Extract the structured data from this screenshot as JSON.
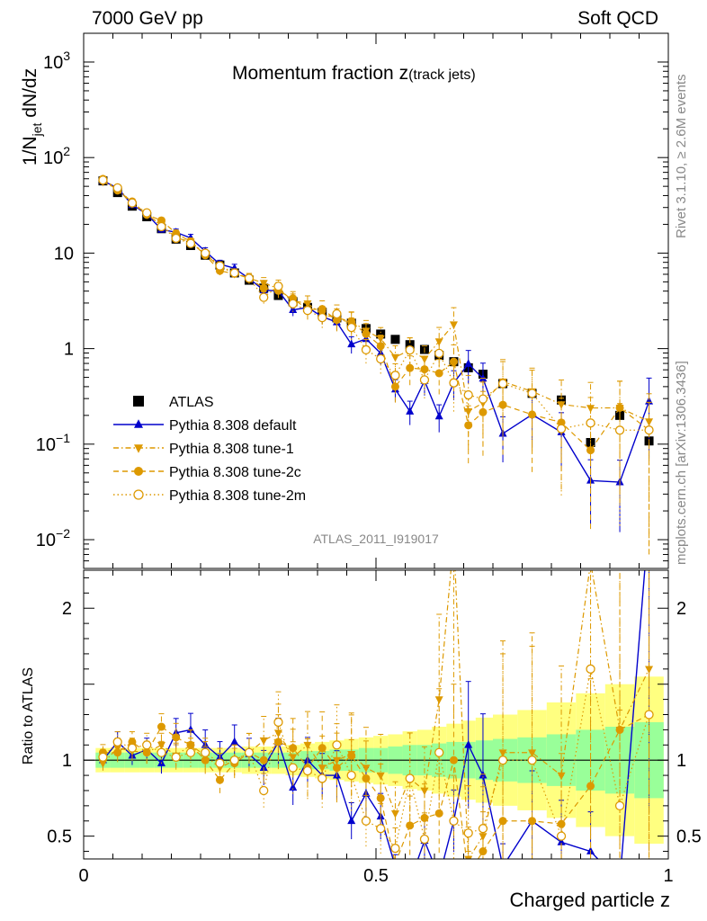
{
  "header": {
    "left": "7000 GeV pp",
    "right": "Soft QCD"
  },
  "title": {
    "main": "Momentum fraction ",
    "var": "z",
    "sub": "(track jets)"
  },
  "ylabel": {
    "pre": "1/N",
    "sub": "jet",
    "post": " dN/dz"
  },
  "ratio_ylabel": "Ratio to ATLAS",
  "xlabel": "Charged particle z",
  "watermark": "ATLAS_2011_I919017",
  "side_top": "Rivet 3.1.10, ≥ 2.6M events",
  "side_bottom": "mcplots.cern.ch [arXiv:1306.3436]",
  "colors": {
    "atlas": "#000000",
    "default": "#0000cc",
    "tunes": "#dd9900",
    "band_inner": "#99ff99",
    "band_outer": "#ffff80"
  },
  "chart_data": {
    "type": "scatter",
    "x": [
      0.033,
      0.058,
      0.083,
      0.108,
      0.133,
      0.158,
      0.183,
      0.208,
      0.233,
      0.258,
      0.283,
      0.308,
      0.333,
      0.358,
      0.383,
      0.408,
      0.433,
      0.458,
      0.483,
      0.508,
      0.533,
      0.558,
      0.583,
      0.608,
      0.633,
      0.658,
      0.683,
      0.717,
      0.767,
      0.817,
      0.867,
      0.917,
      0.967
    ],
    "main": {
      "xlim": [
        0,
        1
      ],
      "ylim": [
        0.005,
        2000
      ],
      "yscale": "log",
      "yticks": [
        {
          "v": 0.01,
          "base": "10",
          "exp": "−2"
        },
        {
          "v": 0.1,
          "base": "10",
          "exp": "−1"
        },
        {
          "v": 1,
          "base": "1",
          "exp": ""
        },
        {
          "v": 10,
          "base": "10",
          "exp": ""
        },
        {
          "v": 100,
          "base": "10",
          "exp": "2"
        },
        {
          "v": 1000,
          "base": "10",
          "exp": "3"
        }
      ]
    },
    "ratio": {
      "ylim": [
        0.35,
        2.25
      ],
      "yticks": [
        {
          "v": 0.5,
          "label": "0.5"
        },
        {
          "v": 1,
          "label": "1"
        },
        {
          "v": 2,
          "label": "2"
        }
      ],
      "band_inner": [
        0.05,
        0.05,
        0.05,
        0.05,
        0.05,
        0.05,
        0.05,
        0.05,
        0.05,
        0.05,
        0.05,
        0.05,
        0.05,
        0.05,
        0.06,
        0.06,
        0.07,
        0.07,
        0.08,
        0.08,
        0.09,
        0.1,
        0.1,
        0.11,
        0.12,
        0.12,
        0.13,
        0.14,
        0.15,
        0.17,
        0.2,
        0.22,
        0.25
      ],
      "band_outer": [
        0.08,
        0.08,
        0.08,
        0.08,
        0.08,
        0.08,
        0.08,
        0.08,
        0.08,
        0.08,
        0.09,
        0.09,
        0.09,
        0.1,
        0.11,
        0.12,
        0.13,
        0.14,
        0.15,
        0.16,
        0.17,
        0.19,
        0.2,
        0.22,
        0.24,
        0.26,
        0.28,
        0.3,
        0.33,
        0.38,
        0.44,
        0.5,
        0.55
      ]
    },
    "xticks": [
      {
        "v": 0,
        "label": "0"
      },
      {
        "v": 0.5,
        "label": "0.5"
      },
      {
        "v": 1,
        "label": "1"
      }
    ],
    "series": [
      {
        "name": "ATLAS",
        "marker": "square",
        "line": "none",
        "y": [
          57,
          43,
          31,
          24,
          18,
          14,
          12,
          9.5,
          7.5,
          6.2,
          5.2,
          4.3,
          3.6,
          3.1,
          2.7,
          2.4,
          2.1,
          1.85,
          1.62,
          1.42,
          1.25,
          1.1,
          0.98,
          0.85,
          0.73,
          0.63,
          0.54,
          0.43,
          0.34,
          0.29,
          0.104,
          0.2,
          0.108
        ]
      },
      {
        "name": "Pythia 8.308 default",
        "marker": "triangle",
        "line": "solid",
        "ratio": [
          1.0,
          1.12,
          1.03,
          1.07,
          0.98,
          1.18,
          1.2,
          1.1,
          1.02,
          1.12,
          1.04,
          0.95,
          1.12,
          0.82,
          1.0,
          0.9,
          0.9,
          0.6,
          0.78,
          0.63,
          0.3,
          0.2,
          0.47,
          0.23,
          0.6,
          1.1,
          0.9,
          0.3,
          0.6,
          0.46,
          0.4,
          0.2,
          2.6
        ],
        "err": [
          0.05,
          0.06,
          0.06,
          0.07,
          0.07,
          0.08,
          0.09,
          0.09,
          0.1,
          0.1,
          0.1,
          0.12,
          0.14,
          0.14,
          0.15,
          0.16,
          0.18,
          0.2,
          0.22,
          0.24,
          0.26,
          0.28,
          0.3,
          0.32,
          0.34,
          0.38,
          0.45,
          0.5,
          0.55,
          0.6,
          0.65,
          0.7,
          0.75
        ]
      },
      {
        "name": "Pythia 8.308 tune-1",
        "marker": "triangle-down",
        "line": "dashdot",
        "ratio": [
          0.98,
          1.08,
          1.06,
          1.05,
          1.1,
          1.03,
          1.1,
          1.03,
          0.95,
          1.0,
          1.05,
          1.13,
          1.18,
          1.02,
          1.1,
          0.95,
          1.0,
          1.04,
          0.95,
          0.9,
          0.65,
          0.88,
          0.8,
          1.4,
          2.45,
          0.35,
          0.5,
          1.05,
          1.05,
          0.9,
          2.3,
          1.2,
          1.6
        ],
        "err": [
          0.05,
          0.06,
          0.06,
          0.07,
          0.07,
          0.08,
          0.09,
          0.09,
          0.1,
          0.1,
          0.12,
          0.14,
          0.16,
          0.18,
          0.2,
          0.22,
          0.24,
          0.26,
          0.28,
          0.3,
          0.32,
          0.34,
          0.36,
          0.4,
          0.5,
          0.6,
          0.65,
          0.7,
          0.75,
          0.8,
          0.85,
          0.9,
          0.95
        ]
      },
      {
        "name": "Pythia 8.308 tune-2c",
        "marker": "circle",
        "line": "dashed",
        "ratio": [
          1.05,
          1.05,
          1.12,
          1.05,
          1.22,
          1.15,
          1.1,
          1.0,
          0.87,
          0.98,
          1.05,
          1.0,
          1.12,
          1.08,
          0.95,
          1.08,
          0.95,
          1.03,
          0.88,
          0.75,
          0.32,
          0.57,
          0.62,
          0.65,
          1.0,
          0.25,
          0.4,
          0.6,
          0.6,
          0.58,
          0.83,
          1.2,
          1.3
        ],
        "err": [
          0.05,
          0.06,
          0.06,
          0.07,
          0.07,
          0.08,
          0.09,
          0.09,
          0.1,
          0.1,
          0.12,
          0.14,
          0.16,
          0.18,
          0.2,
          0.22,
          0.24,
          0.26,
          0.28,
          0.3,
          0.32,
          0.34,
          0.36,
          0.4,
          0.5,
          0.6,
          0.65,
          0.7,
          0.75,
          0.8,
          0.85,
          0.9,
          0.95
        ]
      },
      {
        "name": "Pythia 8.308 tune-2m",
        "marker": "circle-open",
        "line": "dotted",
        "ratio": [
          1.02,
          1.12,
          1.08,
          1.1,
          1.05,
          1.02,
          1.05,
          1.05,
          0.98,
          1.0,
          1.05,
          0.8,
          1.25,
          0.95,
          0.93,
          0.88,
          1.1,
          0.9,
          0.6,
          0.55,
          0.42,
          0.88,
          0.48,
          1.05,
          0.6,
          0.52,
          0.55,
          1.0,
          1.0,
          0.5,
          1.6,
          0.7,
          1.3
        ],
        "err": [
          0.05,
          0.06,
          0.06,
          0.07,
          0.07,
          0.08,
          0.09,
          0.09,
          0.1,
          0.1,
          0.12,
          0.14,
          0.16,
          0.18,
          0.2,
          0.22,
          0.24,
          0.26,
          0.28,
          0.3,
          0.32,
          0.34,
          0.36,
          0.4,
          0.5,
          0.6,
          0.65,
          0.7,
          0.75,
          0.8,
          0.85,
          0.9,
          0.95
        ]
      }
    ]
  }
}
